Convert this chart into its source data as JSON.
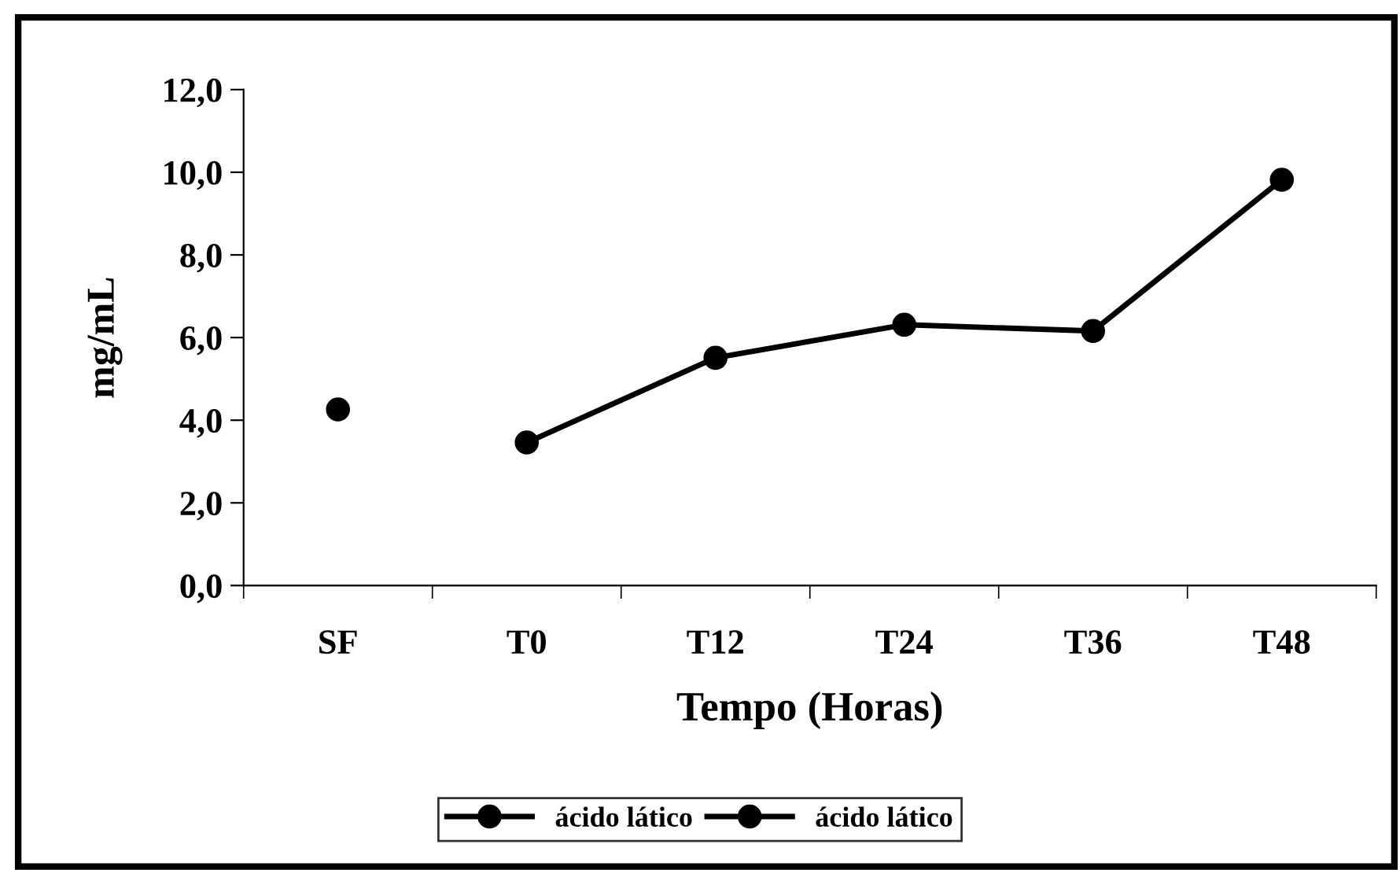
{
  "chart_data": {
    "type": "line",
    "xlabel": "Tempo (Horas)",
    "ylabel": "mg/mL",
    "categories": [
      "SF",
      "T0",
      "T12",
      "T24",
      "T36",
      "T48"
    ],
    "series": [
      {
        "name": "ácido lático",
        "color": "#000000",
        "values": [
          4.26,
          null,
          null,
          null,
          null,
          null
        ]
      },
      {
        "name": "ácido lático",
        "color": "#000000",
        "values": [
          null,
          3.46,
          5.51,
          6.31,
          6.16,
          9.82
        ]
      }
    ],
    "ylim": [
      0,
      12
    ],
    "yticks": [
      {
        "value": 0,
        "label": "0,0"
      },
      {
        "value": 2,
        "label": "2,0"
      },
      {
        "value": 4,
        "label": "4,0"
      },
      {
        "value": 6,
        "label": "6,0"
      },
      {
        "value": 8,
        "label": "8,0"
      },
      {
        "value": 10,
        "label": "10,0"
      },
      {
        "value": 12,
        "label": "12,0"
      }
    ],
    "grid": false,
    "legend": "bottom",
    "marker": "circle",
    "line_style": "solid"
  }
}
